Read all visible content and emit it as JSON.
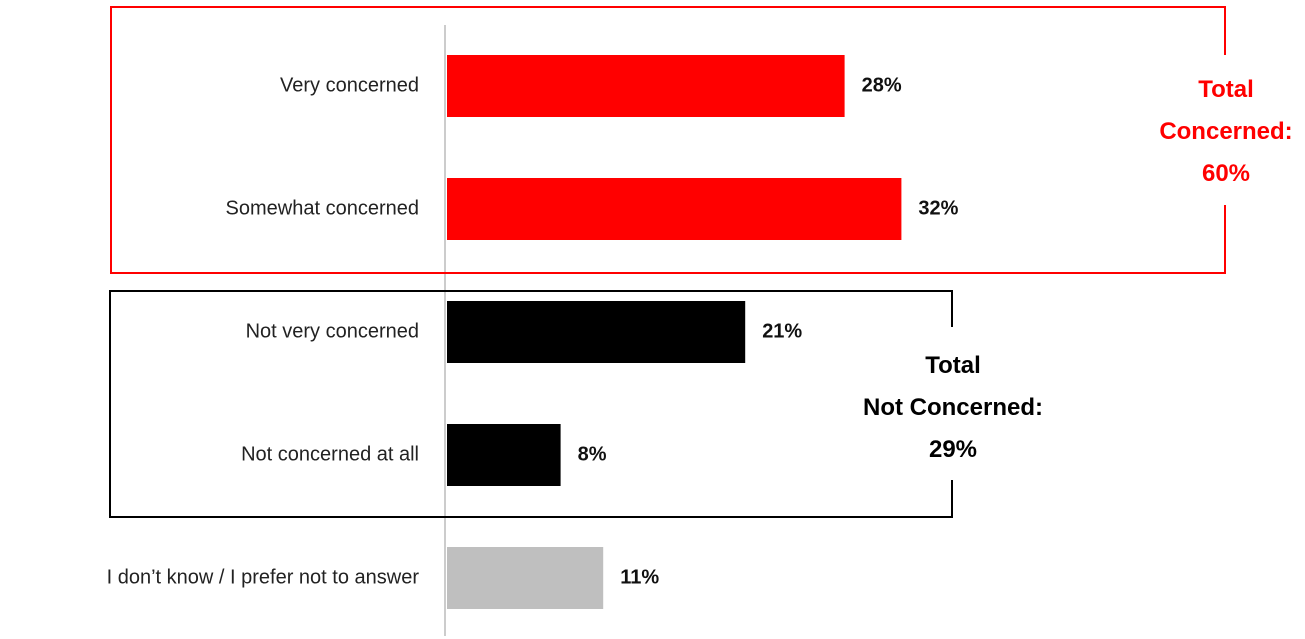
{
  "chart_data": {
    "type": "bar",
    "orientation": "horizontal",
    "categories": [
      "Very concerned",
      "Somewhat concerned",
      "Not very concerned",
      "Not concerned at all",
      "I don’t know / I prefer not to answer"
    ],
    "values": [
      28,
      32,
      21,
      8,
      11
    ],
    "value_labels": [
      "28%",
      "32%",
      "21%",
      "8%",
      "11%"
    ],
    "bar_colors": [
      "#ff0000",
      "#ff0000",
      "#000000",
      "#000000",
      "#bfbfbf"
    ],
    "title": "",
    "xlabel": "",
    "ylabel": "",
    "xlim": [
      0,
      45
    ],
    "grid": false,
    "groups": [
      {
        "lines": [
          "Total",
          "Concerned:",
          "60%"
        ],
        "color": "#ff0000",
        "members": [
          0,
          1
        ]
      },
      {
        "lines": [
          "Total",
          "Not Concerned:",
          "29%"
        ],
        "color": "#000000",
        "members": [
          2,
          3
        ]
      }
    ]
  }
}
